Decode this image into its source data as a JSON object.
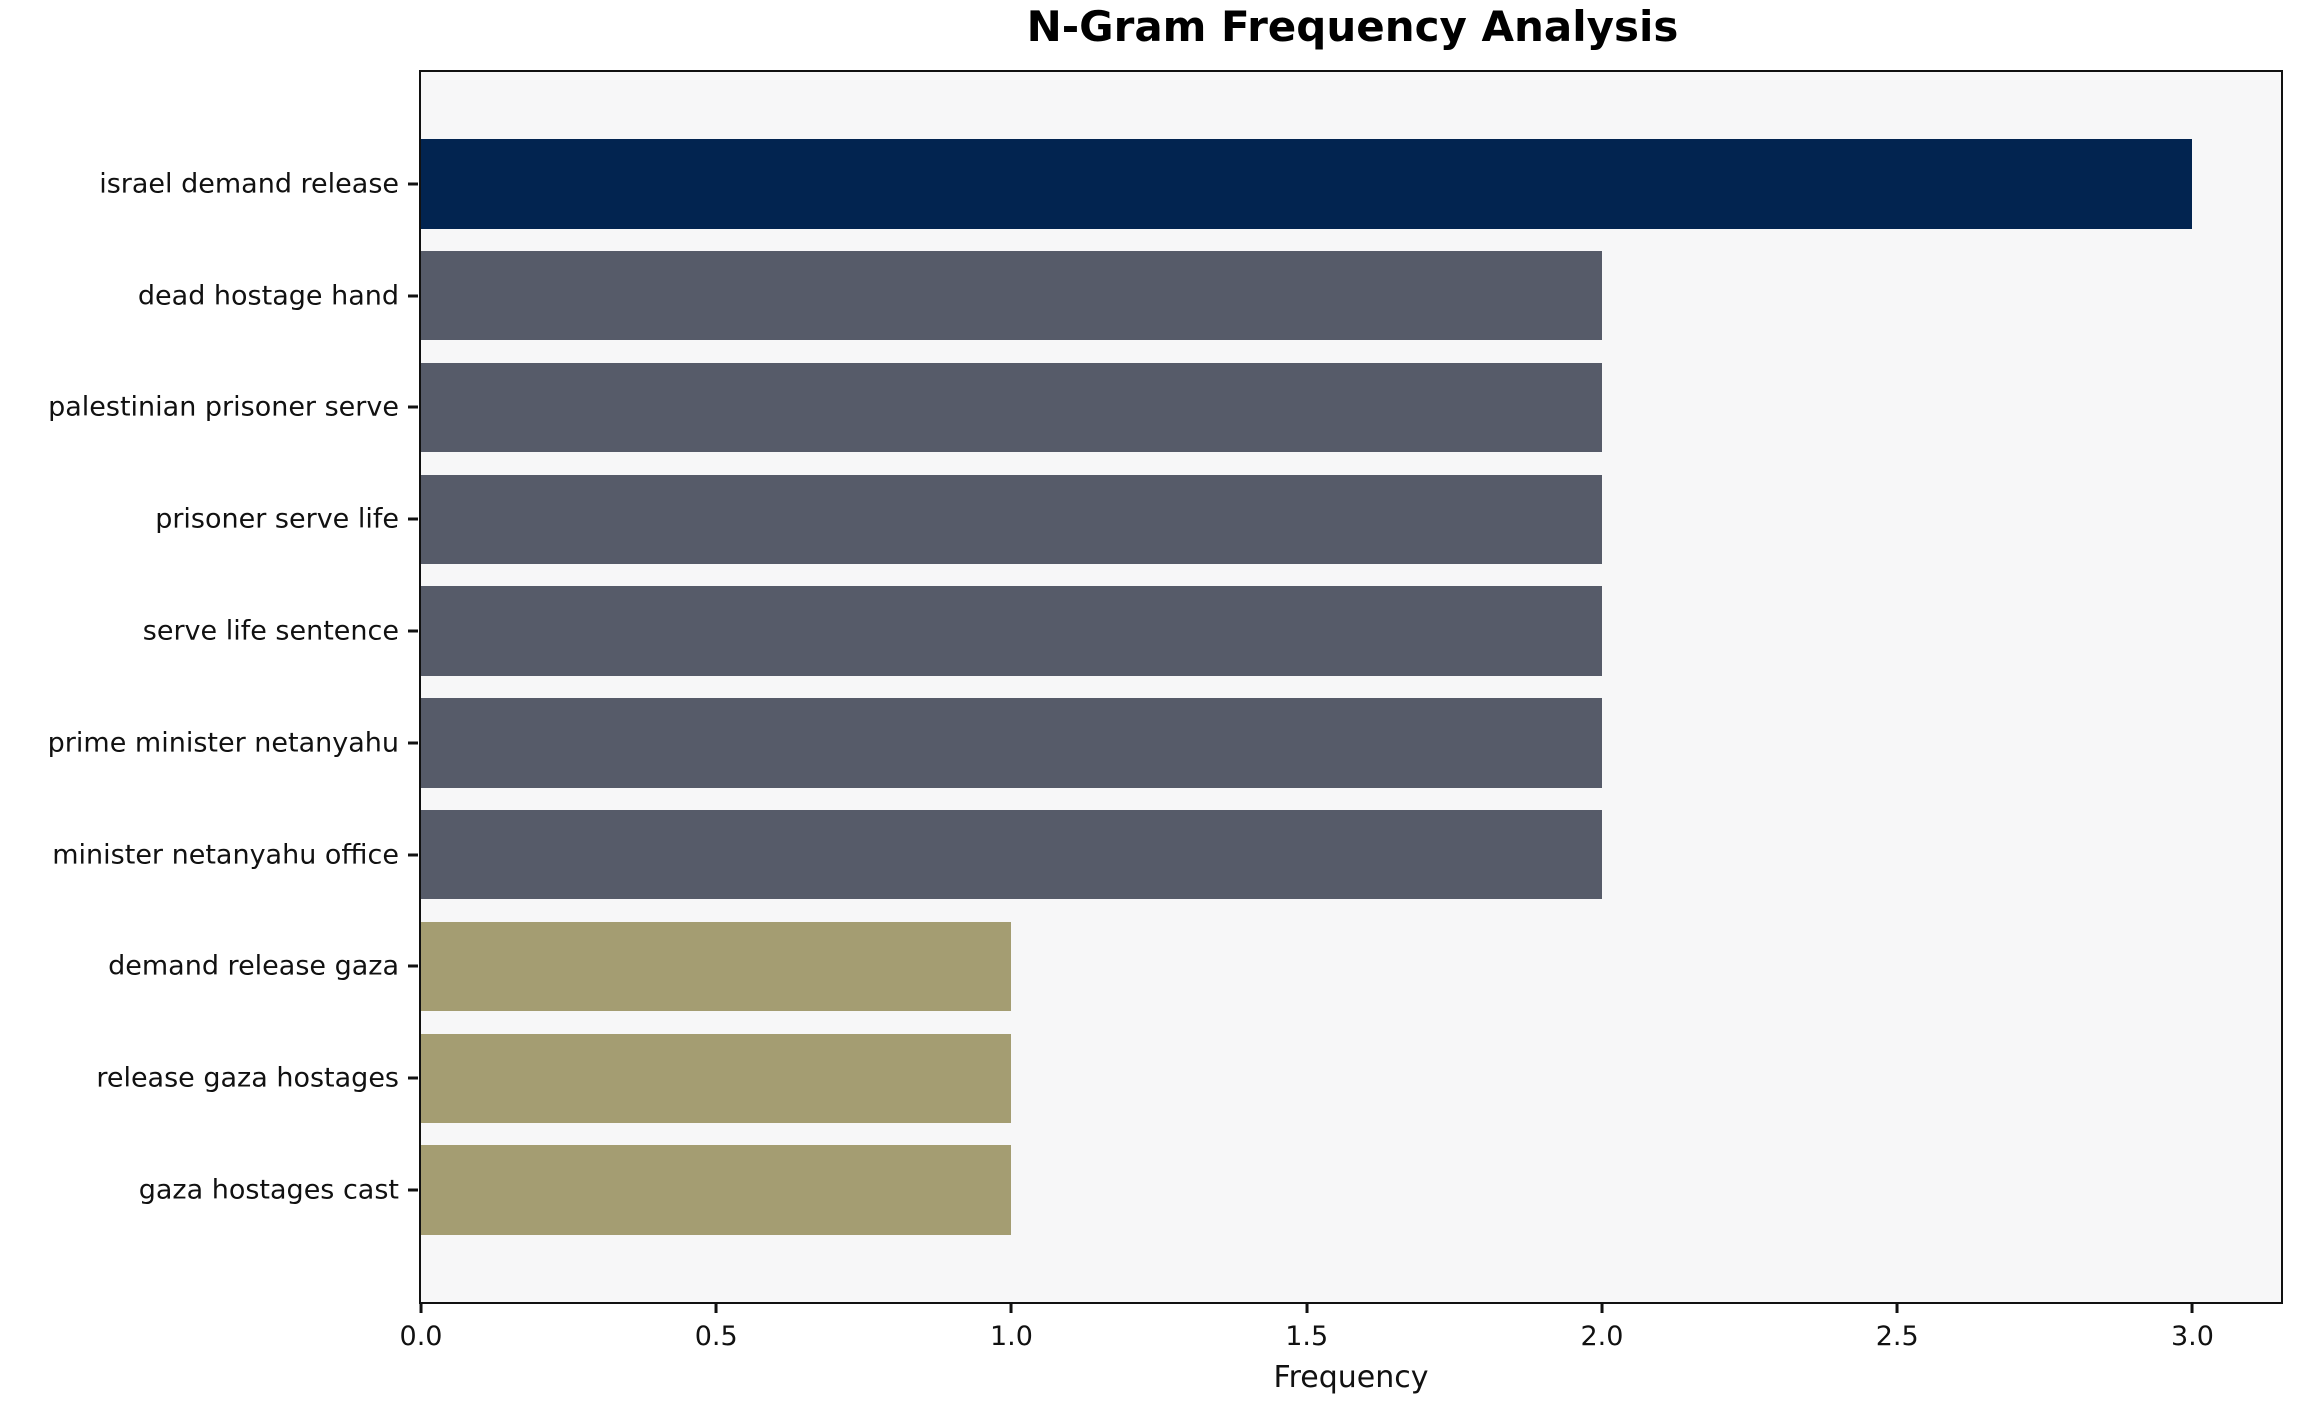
{
  "title": "N-Gram Frequency Analysis",
  "chart_data": {
    "type": "bar",
    "orientation": "horizontal",
    "title": "N-Gram Frequency Analysis",
    "xlabel": "Frequency",
    "ylabel": "",
    "categories": [
      "israel demand release",
      "dead hostage hand",
      "palestinian prisoner serve",
      "prisoner serve life",
      "serve life sentence",
      "prime minister netanyahu",
      "minister netanyahu office",
      "demand release gaza",
      "release gaza hostages",
      "gaza hostages cast"
    ],
    "values": [
      3,
      2,
      2,
      2,
      2,
      2,
      2,
      1,
      1,
      1
    ],
    "bar_colors": [
      "#022450",
      "#565b69",
      "#565b69",
      "#565b69",
      "#565b69",
      "#565b69",
      "#565b69",
      "#a49d72",
      "#a49d72",
      "#a49d72"
    ],
    "x_ticks": [
      {
        "value": 0,
        "label": "0.0"
      },
      {
        "value": 0.5,
        "label": "0.5"
      },
      {
        "value": 1,
        "label": "1.0"
      },
      {
        "value": 1.5,
        "label": "1.5"
      },
      {
        "value": 2,
        "label": "2.0"
      },
      {
        "value": 2.5,
        "label": "2.5"
      },
      {
        "value": 3,
        "label": "3.0"
      }
    ],
    "xlim": [
      0,
      3.15
    ],
    "grid": false,
    "legend": "none",
    "colors": {
      "plot_background": "#f7f7f8",
      "figure_background": "#ffffff",
      "axis": "#111111",
      "text": "#111111",
      "highest_bar": "#022450",
      "mid_bar": "#565b69",
      "low_bar": "#a49d72"
    }
  }
}
